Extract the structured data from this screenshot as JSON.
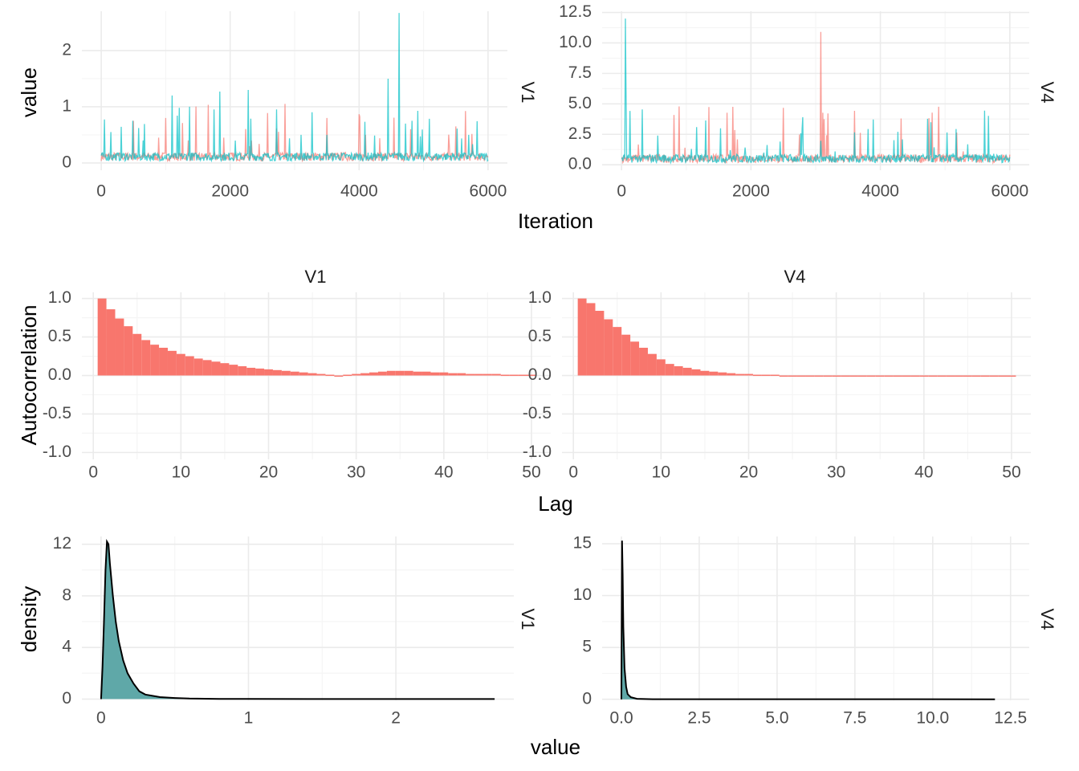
{
  "colors": {
    "chain1": "#F8766D",
    "chain2": "#00BFC4",
    "density_fill": "#5FA8A8",
    "grid_major": "#EBEBEB",
    "grid_minor": "#F5F5F5"
  },
  "labels": {
    "trace_ylabel": "value",
    "trace_xlabel": "Iteration",
    "acf_ylabel": "Autocorrelation",
    "acf_xlabel": "Lag",
    "density_ylabel": "density",
    "density_xlabel": "value",
    "v1": "V1",
    "v4": "V4"
  },
  "chart_data": [
    {
      "type": "line",
      "panel": "trace",
      "facet": "V1",
      "xlabel": "Iteration",
      "ylabel": "value",
      "xlim": [
        0,
        6000
      ],
      "ylim": [
        0,
        2.7
      ],
      "x_ticks": [
        0,
        2000,
        4000,
        6000
      ],
      "y_ticks": [
        0,
        1,
        2
      ],
      "series": [
        {
          "peaks": [
            [
              500,
              0.75
            ],
            [
              1000,
              0.8
            ],
            [
              1350,
              0.4
            ],
            [
              1900,
              0.45
            ],
            [
              2300,
              0.3
            ],
            [
              2850,
              1.05
            ],
            [
              3500,
              0.8
            ],
            [
              4100,
              0.5
            ],
            [
              4800,
              0.6
            ],
            [
              5500,
              0.65
            ]
          ]
        },
        {
          "peaks": [
            [
              150,
              0.55
            ],
            [
              650,
              0.4
            ],
            [
              1100,
              1.2
            ],
            [
              1370,
              1.0
            ],
            [
              1840,
              1.27
            ],
            [
              2280,
              1.3
            ],
            [
              3100,
              0.5
            ],
            [
              3500,
              0.5
            ],
            [
              4450,
              1.5
            ],
            [
              4620,
              2.67
            ],
            [
              4720,
              0.7
            ],
            [
              4820,
              0.75
            ],
            [
              5700,
              0.5
            ]
          ]
        }
      ]
    },
    {
      "type": "line",
      "panel": "trace",
      "facet": "V4",
      "xlim": [
        0,
        6000
      ],
      "ylim": [
        0,
        12.5
      ],
      "x_ticks": [
        0,
        2000,
        4000,
        6000
      ],
      "y_ticks": [
        0.0,
        2.5,
        5.0,
        7.5,
        10.0,
        12.5
      ],
      "series": [
        {
          "peaks": [
            [
              50,
              0.5
            ],
            [
              980,
              1.4
            ],
            [
              1300,
              1.2
            ],
            [
              2130,
              0.4
            ],
            [
              3080,
              10.9
            ],
            [
              4120,
              0.4
            ],
            [
              5280,
              1.1
            ]
          ]
        },
        {
          "peaks": [
            [
              60,
              12.0
            ],
            [
              70,
              6.0
            ],
            [
              560,
              2.4
            ],
            [
              1080,
              1.3
            ],
            [
              1680,
              1.2
            ],
            [
              2200,
              1.0
            ],
            [
              2450,
              1.9
            ],
            [
              3300,
              1.1
            ],
            [
              4270,
              2.7
            ],
            [
              5750,
              0.9
            ]
          ]
        }
      ]
    },
    {
      "type": "bar",
      "panel": "autocorrelation",
      "facet": "V1",
      "xlabel": "Lag",
      "ylabel": "Autocorrelation",
      "xlim": [
        0,
        51
      ],
      "ylim": [
        -1.0,
        1.0
      ],
      "x_ticks": [
        0,
        10,
        20,
        30,
        40,
        50
      ],
      "y_ticks": [
        -1.0,
        -0.5,
        0.0,
        0.5,
        1.0
      ],
      "lag_values": [
        [
          1,
          1.0
        ],
        [
          2,
          0.86
        ],
        [
          3,
          0.74
        ],
        [
          4,
          0.64
        ],
        [
          5,
          0.54
        ],
        [
          6,
          0.46
        ],
        [
          7,
          0.4
        ],
        [
          8,
          0.36
        ],
        [
          9,
          0.32
        ],
        [
          10,
          0.28
        ],
        [
          11,
          0.25
        ],
        [
          12,
          0.22
        ],
        [
          13,
          0.2
        ],
        [
          14,
          0.18
        ],
        [
          15,
          0.16
        ],
        [
          16,
          0.14
        ],
        [
          17,
          0.12
        ],
        [
          18,
          0.1
        ],
        [
          19,
          0.09
        ],
        [
          20,
          0.08
        ],
        [
          21,
          0.07
        ],
        [
          22,
          0.06
        ],
        [
          23,
          0.05
        ],
        [
          24,
          0.04
        ],
        [
          25,
          0.03
        ],
        [
          26,
          0.02
        ],
        [
          27,
          0.01
        ],
        [
          28,
          0.0
        ],
        [
          29,
          0.01
        ],
        [
          30,
          0.02
        ],
        [
          31,
          0.03
        ],
        [
          32,
          0.04
        ],
        [
          33,
          0.05
        ],
        [
          34,
          0.06
        ],
        [
          35,
          0.06
        ],
        [
          36,
          0.06
        ],
        [
          37,
          0.05
        ],
        [
          38,
          0.05
        ],
        [
          39,
          0.04
        ],
        [
          40,
          0.04
        ],
        [
          41,
          0.03
        ],
        [
          42,
          0.03
        ],
        [
          43,
          0.02
        ],
        [
          44,
          0.02
        ],
        [
          45,
          0.02
        ],
        [
          46,
          0.02
        ],
        [
          47,
          0.01
        ],
        [
          48,
          0.01
        ],
        [
          49,
          0.01
        ],
        [
          50,
          0.01
        ]
      ]
    },
    {
      "type": "bar",
      "panel": "autocorrelation",
      "facet": "V4",
      "xlim": [
        0,
        51
      ],
      "ylim": [
        -1.0,
        1.0
      ],
      "x_ticks": [
        0,
        10,
        20,
        30,
        40,
        50
      ],
      "lag_values": [
        [
          1,
          1.0
        ],
        [
          2,
          0.94
        ],
        [
          3,
          0.84
        ],
        [
          4,
          0.73
        ],
        [
          5,
          0.63
        ],
        [
          6,
          0.53
        ],
        [
          7,
          0.44
        ],
        [
          8,
          0.36
        ],
        [
          9,
          0.28
        ],
        [
          10,
          0.21
        ],
        [
          11,
          0.15
        ],
        [
          12,
          0.12
        ],
        [
          13,
          0.1
        ],
        [
          14,
          0.08
        ],
        [
          15,
          0.06
        ],
        [
          16,
          0.05
        ],
        [
          17,
          0.04
        ],
        [
          18,
          0.03
        ],
        [
          19,
          0.02
        ],
        [
          20,
          0.02
        ],
        [
          21,
          0.01
        ],
        [
          22,
          0.01
        ],
        [
          23,
          0.01
        ],
        [
          24,
          0.0
        ],
        [
          25,
          0.0
        ],
        [
          26,
          0.0
        ],
        [
          27,
          0.0
        ],
        [
          28,
          -0.01
        ],
        [
          29,
          -0.01
        ],
        [
          30,
          -0.01
        ],
        [
          31,
          -0.01
        ],
        [
          32,
          0.0
        ],
        [
          33,
          0.0
        ],
        [
          34,
          0.0
        ],
        [
          35,
          0.0
        ],
        [
          36,
          0.0
        ],
        [
          37,
          0.0
        ],
        [
          38,
          0.0
        ],
        [
          39,
          0.0
        ],
        [
          40,
          0.0
        ],
        [
          41,
          0.0
        ],
        [
          42,
          0.0
        ],
        [
          43,
          0.0
        ],
        [
          44,
          0.0
        ],
        [
          45,
          0.0
        ],
        [
          46,
          0.0
        ],
        [
          47,
          0.0
        ],
        [
          48,
          0.0
        ],
        [
          49,
          0.0
        ],
        [
          50,
          -0.01
        ]
      ]
    },
    {
      "type": "area",
      "panel": "density",
      "facet": "V1",
      "xlabel": "value",
      "ylabel": "density",
      "xlim": [
        0,
        2.7
      ],
      "ylim": [
        0,
        12.5
      ],
      "x_ticks": [
        0,
        1,
        2
      ],
      "y_ticks": [
        0,
        4,
        8,
        12
      ],
      "curve": [
        [
          0.0,
          0.0
        ],
        [
          0.01,
          2.5
        ],
        [
          0.02,
          6.0
        ],
        [
          0.03,
          10.0
        ],
        [
          0.04,
          12.2
        ],
        [
          0.05,
          12.0
        ],
        [
          0.06,
          10.5
        ],
        [
          0.08,
          8.0
        ],
        [
          0.1,
          6.0
        ],
        [
          0.12,
          4.5
        ],
        [
          0.15,
          3.0
        ],
        [
          0.18,
          2.0
        ],
        [
          0.22,
          1.2
        ],
        [
          0.26,
          0.6
        ],
        [
          0.3,
          0.35
        ],
        [
          0.4,
          0.15
        ],
        [
          0.5,
          0.08
        ],
        [
          0.6,
          0.04
        ],
        [
          0.8,
          0.01
        ],
        [
          1.0,
          0.005
        ],
        [
          2.0,
          0.002
        ],
        [
          2.67,
          0.0
        ]
      ]
    },
    {
      "type": "area",
      "panel": "density",
      "facet": "V4",
      "xlim": [
        0,
        12.5
      ],
      "ylim": [
        0,
        15.5
      ],
      "x_ticks": [
        0.0,
        2.5,
        5.0,
        7.5,
        10.0,
        12.5
      ],
      "y_ticks": [
        0,
        5,
        10,
        15
      ],
      "curve": [
        [
          0.0,
          0.0
        ],
        [
          0.01,
          8.0
        ],
        [
          0.02,
          15.3
        ],
        [
          0.04,
          12.0
        ],
        [
          0.06,
          7.0
        ],
        [
          0.1,
          3.0
        ],
        [
          0.15,
          1.2
        ],
        [
          0.2,
          0.5
        ],
        [
          0.3,
          0.2
        ],
        [
          0.5,
          0.05
        ],
        [
          1.0,
          0.01
        ],
        [
          2.5,
          0.005
        ],
        [
          12.0,
          0.0
        ]
      ]
    }
  ]
}
